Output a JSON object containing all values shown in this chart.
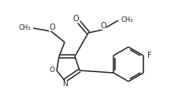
{
  "bg_color": "#ffffff",
  "line_color": "#222222",
  "line_width": 1.1,
  "font_size": 6.5,
  "fig_width": 2.31,
  "fig_height": 1.29,
  "dpi": 100,
  "xlim": [
    0.0,
    231.0
  ],
  "ylim": [
    0.0,
    129.0
  ]
}
